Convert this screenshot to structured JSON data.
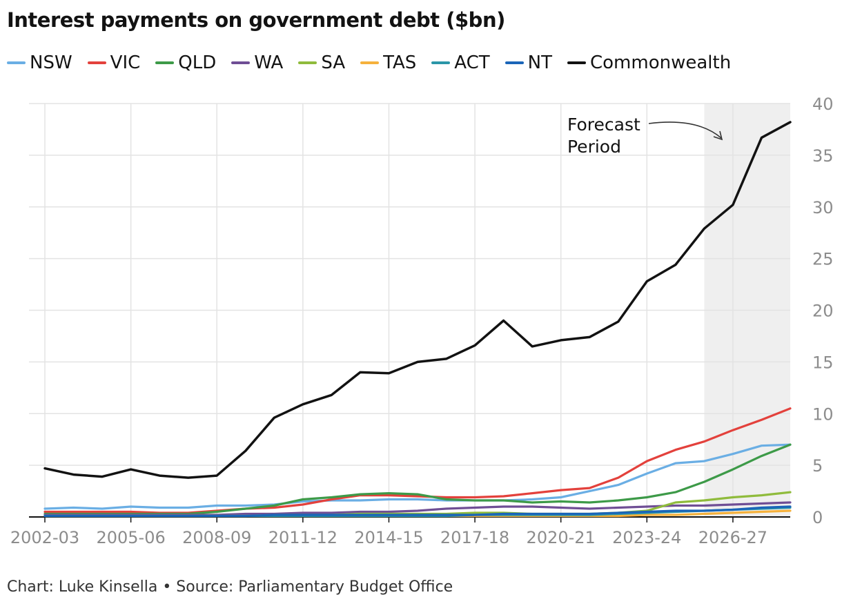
{
  "title": "Interest payments on government debt ($bn)",
  "footer": "Chart: Luke Kinsella • Source: Parliamentary Budget Office",
  "chart_data": {
    "type": "line",
    "title": "Interest payments on government debt ($bn)",
    "xlabel": "",
    "ylabel": "",
    "ylim": [
      0,
      40
    ],
    "y_ticks": [
      0,
      5,
      10,
      15,
      20,
      25,
      30,
      35,
      40
    ],
    "y_axis_side": "right",
    "grid": true,
    "legend_position": "top",
    "x_tick_labels": [
      "2002-03",
      "2005-06",
      "2008-09",
      "2011-12",
      "2014-15",
      "2017-18",
      "2020-21",
      "2023-24",
      "2026-27"
    ],
    "x": [
      "2002-03",
      "2003-04",
      "2004-05",
      "2005-06",
      "2006-07",
      "2007-08",
      "2008-09",
      "2009-10",
      "2010-11",
      "2011-12",
      "2012-13",
      "2013-14",
      "2014-15",
      "2015-16",
      "2016-17",
      "2017-18",
      "2018-19",
      "2019-20",
      "2020-21",
      "2021-22",
      "2022-23",
      "2023-24",
      "2024-25",
      "2025-26",
      "2026-27",
      "2027-28",
      "2028-29"
    ],
    "forecast_start": "2025-26",
    "annotation": {
      "line1": "Forecast",
      "line2": "Period"
    },
    "series": [
      {
        "name": "NSW",
        "color": "#6aaee4",
        "values": [
          0.8,
          0.9,
          0.8,
          1.0,
          0.9,
          0.9,
          1.1,
          1.1,
          1.2,
          1.5,
          1.6,
          1.6,
          1.7,
          1.7,
          1.6,
          1.6,
          1.6,
          1.7,
          1.9,
          2.5,
          3.1,
          4.2,
          5.2,
          5.4,
          6.1,
          6.9,
          7.0
        ]
      },
      {
        "name": "VIC",
        "color": "#e3413c",
        "values": [
          0.5,
          0.5,
          0.5,
          0.5,
          0.4,
          0.4,
          0.6,
          0.8,
          0.9,
          1.2,
          1.7,
          2.1,
          2.1,
          2.0,
          1.9,
          1.9,
          2.0,
          2.3,
          2.6,
          2.8,
          3.8,
          5.4,
          6.5,
          7.3,
          8.4,
          9.4,
          10.5
        ]
      },
      {
        "name": "QLD",
        "color": "#3d9a48",
        "values": [
          0.3,
          0.3,
          0.3,
          0.3,
          0.3,
          0.3,
          0.5,
          0.8,
          1.1,
          1.7,
          1.9,
          2.2,
          2.3,
          2.2,
          1.7,
          1.6,
          1.6,
          1.4,
          1.5,
          1.4,
          1.6,
          1.9,
          2.4,
          3.4,
          4.6,
          5.9,
          7.0
        ]
      },
      {
        "name": "WA",
        "color": "#6f4e95",
        "values": [
          0.2,
          0.2,
          0.2,
          0.2,
          0.2,
          0.2,
          0.2,
          0.3,
          0.3,
          0.4,
          0.4,
          0.5,
          0.5,
          0.6,
          0.8,
          0.9,
          1.0,
          1.0,
          0.9,
          0.8,
          0.9,
          1.0,
          1.1,
          1.1,
          1.2,
          1.3,
          1.4
        ]
      },
      {
        "name": "SA",
        "color": "#8fbb3c",
        "values": [
          0.1,
          0.1,
          0.1,
          0.1,
          0.1,
          0.1,
          0.1,
          0.1,
          0.2,
          0.2,
          0.2,
          0.3,
          0.3,
          0.3,
          0.3,
          0.4,
          0.4,
          0.3,
          0.3,
          0.3,
          0.4,
          0.6,
          1.4,
          1.6,
          1.9,
          2.1,
          2.4
        ]
      },
      {
        "name": "TAS",
        "color": "#f5b13c",
        "values": [
          0.1,
          0.1,
          0.1,
          0.1,
          0.1,
          0.1,
          0.1,
          0.1,
          0.1,
          0.1,
          0.1,
          0.1,
          0.1,
          0.1,
          0.1,
          0.1,
          0.1,
          0.1,
          0.1,
          0.1,
          0.1,
          0.2,
          0.2,
          0.3,
          0.4,
          0.5,
          0.6
        ]
      },
      {
        "name": "ACT",
        "color": "#2a96a8",
        "values": [
          0.1,
          0.1,
          0.1,
          0.1,
          0.1,
          0.1,
          0.1,
          0.1,
          0.1,
          0.1,
          0.1,
          0.1,
          0.1,
          0.1,
          0.1,
          0.2,
          0.2,
          0.2,
          0.2,
          0.2,
          0.3,
          0.4,
          0.5,
          0.6,
          0.7,
          0.8,
          0.9
        ]
      },
      {
        "name": "NT",
        "color": "#1a65b8",
        "values": [
          0.1,
          0.1,
          0.1,
          0.1,
          0.1,
          0.1,
          0.1,
          0.1,
          0.2,
          0.2,
          0.2,
          0.2,
          0.2,
          0.2,
          0.2,
          0.2,
          0.3,
          0.3,
          0.3,
          0.3,
          0.4,
          0.5,
          0.6,
          0.6,
          0.7,
          0.9,
          1.0
        ]
      },
      {
        "name": "Commonwealth",
        "color": "#121212",
        "values": [
          4.7,
          4.1,
          3.9,
          4.6,
          4.0,
          3.8,
          4.0,
          6.4,
          9.6,
          10.9,
          11.8,
          14.0,
          13.9,
          15.0,
          15.3,
          16.6,
          19.0,
          16.5,
          17.1,
          17.4,
          18.9,
          22.8,
          24.4,
          27.9,
          30.2,
          36.7,
          38.2
        ]
      }
    ]
  }
}
